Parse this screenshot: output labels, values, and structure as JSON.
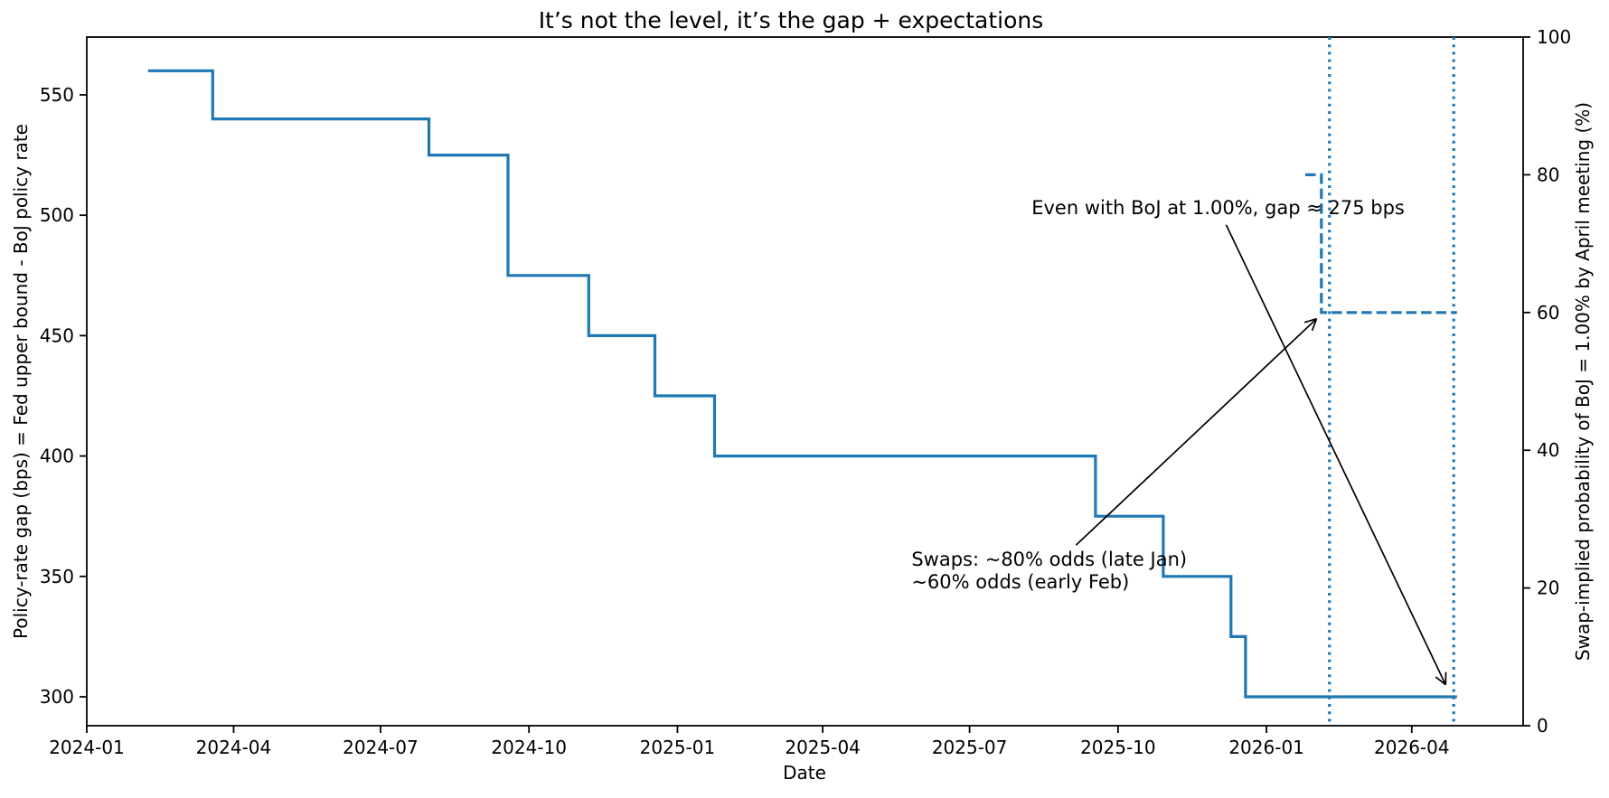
{
  "chart_data": {
    "type": "line",
    "title": "It’s not the level, it’s the gap + expectations",
    "xlabel": "Date",
    "ylabel_left": "Policy-rate gap (bps) = Fed upper bound - BoJ policy rate",
    "ylabel_right": "Swap-implied probability of BoJ = 1.00% by April meeting (%)",
    "x_ticks": [
      "2024-01",
      "2024-04",
      "2024-07",
      "2024-10",
      "2025-01",
      "2025-04",
      "2025-07",
      "2025-10",
      "2026-01",
      "2026-04"
    ],
    "y_ticks_left": [
      300,
      350,
      400,
      450,
      500,
      550
    ],
    "y_ticks_right": [
      0,
      20,
      40,
      60,
      80,
      100
    ],
    "xlim": [
      "2024-01-01",
      "2026-06-09"
    ],
    "ylim_left": [
      288,
      574
    ],
    "ylim_right": [
      0,
      100
    ],
    "grid": false,
    "line_color": "#1f77b4",
    "series": [
      {
        "name": "policy-rate-gap",
        "axis": "left",
        "style": "solid",
        "drawstyle": "steps-post",
        "points": [
          [
            "2024-02-08",
            560
          ],
          [
            "2024-03-19",
            540
          ],
          [
            "2024-07-31",
            525
          ],
          [
            "2024-09-18",
            475
          ],
          [
            "2024-11-07",
            450
          ],
          [
            "2024-12-18",
            425
          ],
          [
            "2025-01-24",
            400
          ],
          [
            "2025-09-17",
            375
          ],
          [
            "2025-10-29",
            350
          ],
          [
            "2025-12-10",
            325
          ],
          [
            "2025-12-19",
            300
          ],
          [
            "2026-04-29",
            300
          ]
        ]
      },
      {
        "name": "swap-implied-probability",
        "axis": "right",
        "style": "dashed",
        "drawstyle": "steps-post",
        "points": [
          [
            "2026-01-25",
            80
          ],
          [
            "2026-02-04",
            60
          ],
          [
            "2026-04-29",
            60
          ]
        ]
      }
    ],
    "vlines": [
      {
        "date": "2026-02-09",
        "style": "dotted"
      },
      {
        "date": "2026-04-27",
        "style": "dotted"
      }
    ],
    "annotations": [
      {
        "text": [
          "Even with BoJ at 1.00%, gap ≈ 275 bps"
        ],
        "align": "middle",
        "date": "2025-12-02",
        "value": 503,
        "arrow": {
          "from": [
            "2025-12-07",
            496
          ],
          "to": [
            "2026-04-22",
            305
          ]
        }
      },
      {
        "text": [
          "Swaps: ~80% odds (late Jan)",
          "~60% odds (early Feb)"
        ],
        "align": "start",
        "date": "2025-05-26",
        "value": 357,
        "arrow": {
          "from": [
            "2025-09-05",
            363
          ],
          "to": [
            "2026-02-01",
            457
          ]
        }
      }
    ]
  }
}
